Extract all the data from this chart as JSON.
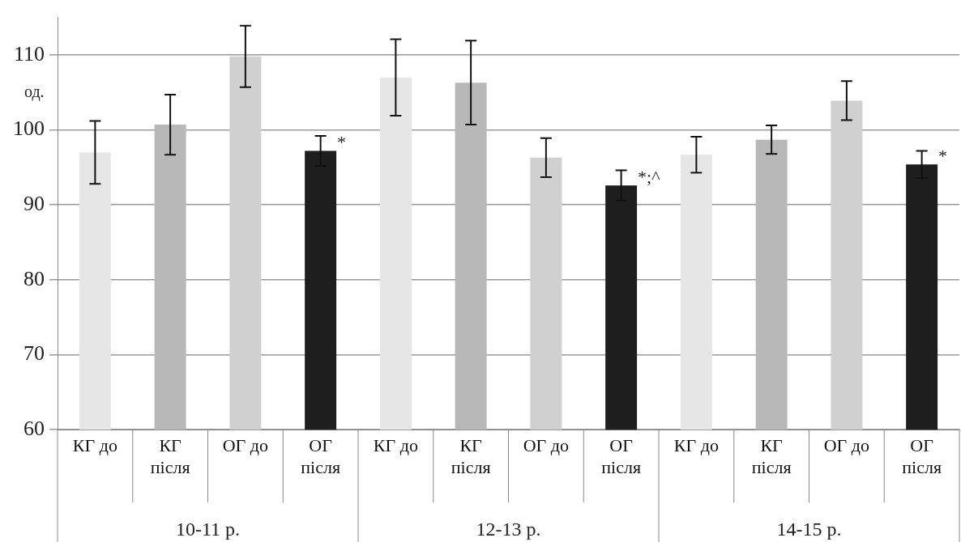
{
  "chart_data": {
    "type": "bar",
    "ylabel": "од.",
    "categories": [
      "КГ до",
      "КГ після",
      "ОГ до",
      "ОГ після",
      "КГ до",
      "КГ після",
      "ОГ до",
      "ОГ після",
      "КГ до",
      "КГ після",
      "ОГ до",
      "ОГ після"
    ],
    "values": [
      97.0,
      100.7,
      109.8,
      97.2,
      107.0,
      106.3,
      96.3,
      92.6,
      96.7,
      98.7,
      103.9,
      95.4
    ],
    "errors": [
      4.2,
      4.0,
      4.1,
      2.0,
      5.1,
      5.6,
      2.6,
      2.0,
      2.4,
      1.9,
      2.6,
      1.8
    ],
    "colors": [
      "#e6e6e6",
      "#b8b8b8",
      "#d0d0d0",
      "#1e1e1e",
      "#e6e6e6",
      "#b8b8b8",
      "#d0d0d0",
      "#1e1e1e",
      "#e6e6e6",
      "#b8b8b8",
      "#d0d0d0",
      "#1e1e1e"
    ],
    "ylim": [
      60,
      115
    ],
    "yticks": [
      60,
      70,
      80,
      90,
      100,
      110
    ],
    "grid": "y",
    "legend": false,
    "annotations": [
      {
        "text": "*",
        "x": "ОГ після",
        "y": 97.2
      },
      "*;^",
      "*",
      "10-11 р.",
      "12-13 р.",
      "14-15 р."
    ]
  }
}
